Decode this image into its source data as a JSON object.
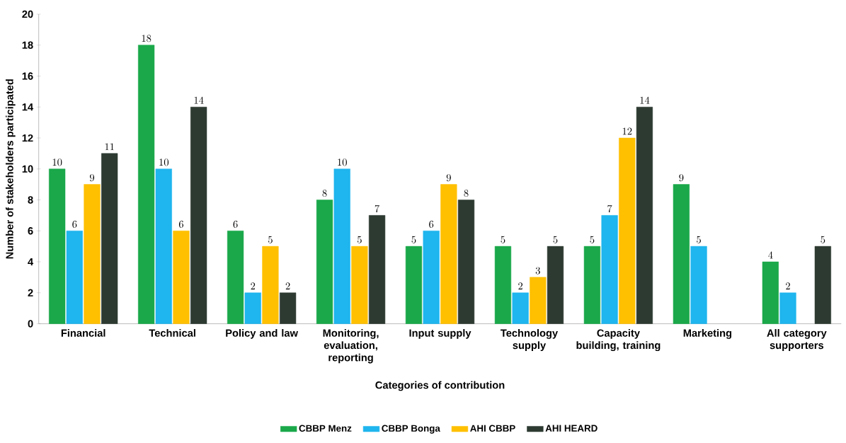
{
  "chart_data": {
    "type": "bar",
    "xlabel": "Categories of contribution",
    "ylabel": "Number of stakeholders participated",
    "categories": [
      "Financial",
      "Technical",
      "Policy and law",
      "Monitoring, evaluation, reporting",
      "Input supply",
      "Technology supply",
      "Capacity building, training",
      "Marketing",
      "All category supporters"
    ],
    "series": [
      {
        "name": "CBBP Menz",
        "color": "#1aa84a",
        "values": [
          10,
          18,
          6,
          8,
          5,
          5,
          5,
          9,
          4
        ]
      },
      {
        "name": "CBBP Bonga",
        "color": "#1fb5ee",
        "values": [
          6,
          10,
          2,
          10,
          6,
          2,
          7,
          5,
          2
        ]
      },
      {
        "name": "AHI CBBP",
        "color": "#ffc000",
        "values": [
          9,
          6,
          5,
          5,
          9,
          3,
          12,
          null,
          null
        ]
      },
      {
        "name": "AHI HEARD",
        "color": "#2d3a32",
        "values": [
          11,
          14,
          2,
          7,
          8,
          5,
          14,
          null,
          5
        ]
      }
    ],
    "ylim": [
      0,
      20
    ],
    "yticks": [
      0,
      2,
      4,
      6,
      8,
      10,
      12,
      14,
      16,
      18,
      20
    ],
    "data_labels": true,
    "grid": false,
    "legend": "bottom"
  }
}
